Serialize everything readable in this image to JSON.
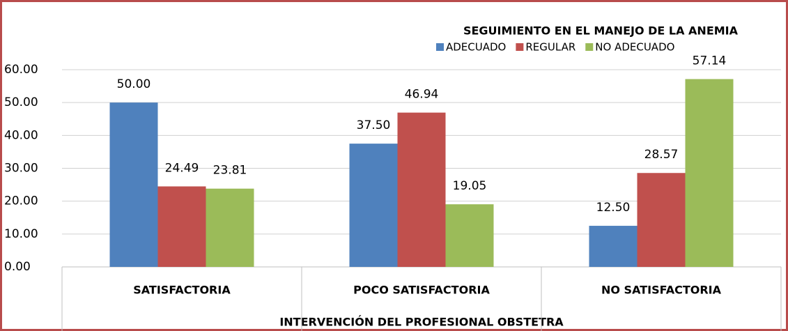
{
  "chart_data": {
    "type": "bar",
    "legend_title": "SEGUIMIENTO EN EL MANEJO DE LA ANEMIA",
    "x_label": "INTERVENCIÓN DEL PROFESIONAL OBSTETRA",
    "categories": [
      "SATISFACTORIA",
      "POCO SATISFACTORIA",
      "NO SATISFACTORIA"
    ],
    "series": [
      {
        "name": "ADECUADO",
        "color": "#4f81bd",
        "values": [
          50,
          37.5,
          12.5
        ],
        "value_labels": [
          "50.00",
          "37.50",
          "12.50"
        ]
      },
      {
        "name": "REGULAR",
        "color": "#c0504d",
        "values": [
          24.49,
          46.94,
          28.57
        ],
        "value_labels": [
          "24.49",
          "46.94",
          "28.57"
        ]
      },
      {
        "name": "NO ADECUADO",
        "color": "#9bbb59",
        "values": [
          23.81,
          19.05,
          57.14
        ],
        "value_labels": [
          "23.81",
          "19.05",
          "57.14"
        ]
      }
    ],
    "ylim": [
      0,
      60
    ],
    "yticks": [
      {
        "value": 0,
        "label": "0.00"
      },
      {
        "value": 10,
        "label": "10.00"
      },
      {
        "value": 20,
        "label": "20.00"
      },
      {
        "value": 30,
        "label": "30.00"
      },
      {
        "value": 40,
        "label": "40.00"
      },
      {
        "value": 50,
        "label": "50.00"
      },
      {
        "value": 60,
        "label": "60.00"
      }
    ],
    "grid": true,
    "legend": "top-right"
  }
}
